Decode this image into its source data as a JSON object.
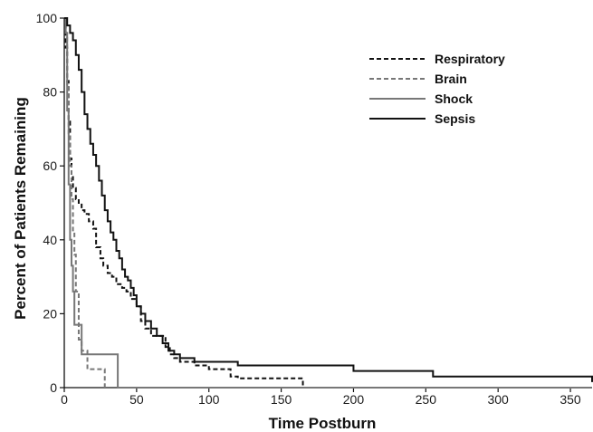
{
  "chart_data": {
    "type": "line",
    "step": true,
    "xlabel": "Time Postburn",
    "ylabel": "Percent of Patients Remaining",
    "xlim": [
      0,
      365
    ],
    "ylim": [
      0,
      100
    ],
    "xticks": [
      0,
      50,
      100,
      150,
      200,
      250,
      300,
      350
    ],
    "yticks": [
      0,
      20,
      40,
      60,
      80,
      100
    ],
    "legend_position": "top-right",
    "grid": false,
    "series": [
      {
        "name": "Respiratory",
        "color": "#111111",
        "dash": "dashed",
        "x": [
          0,
          1,
          2,
          3,
          4,
          5,
          6,
          8,
          10,
          12,
          14,
          17,
          20,
          22,
          25,
          27,
          30,
          33,
          36,
          40,
          43,
          46,
          50,
          53,
          56,
          60,
          63,
          66,
          70,
          73,
          76,
          80,
          85,
          90,
          100,
          115,
          120,
          165
        ],
        "y": [
          100,
          92,
          83,
          72,
          62,
          57,
          54,
          51,
          50,
          48,
          47,
          45,
          43,
          38,
          35,
          33,
          31,
          30,
          28,
          27,
          26,
          24,
          22,
          18,
          16,
          14,
          14,
          14,
          11,
          9,
          8,
          7,
          7,
          6,
          5,
          3,
          2.5,
          0
        ]
      },
      {
        "name": "Brain",
        "color": "#777777",
        "dash": "dashed",
        "x": [
          0,
          1,
          2,
          3,
          4,
          5,
          6,
          7,
          8,
          10,
          12,
          16,
          20,
          28
        ],
        "y": [
          100,
          96,
          82,
          68,
          60,
          51,
          42,
          36,
          26,
          13,
          10,
          5,
          5,
          0
        ]
      },
      {
        "name": "Shock",
        "color": "#777777",
        "dash": "solid",
        "x": [
          0,
          1,
          2,
          3,
          4,
          5,
          6,
          7,
          9,
          12,
          20,
          37,
          365
        ],
        "y": [
          100,
          96,
          75,
          55,
          40,
          33,
          26,
          17,
          17,
          9,
          9,
          0,
          0
        ]
      },
      {
        "name": "Sepsis",
        "color": "#111111",
        "dash": "solid",
        "x": [
          0,
          2,
          4,
          6,
          8,
          10,
          12,
          14,
          16,
          18,
          20,
          22,
          24,
          26,
          28,
          30,
          32,
          34,
          36,
          38,
          40,
          42,
          44,
          46,
          48,
          50,
          53,
          56,
          60,
          64,
          68,
          72,
          76,
          80,
          90,
          120,
          200,
          255,
          365
        ],
        "y": [
          100,
          98,
          96,
          94,
          90,
          86,
          80,
          74,
          70,
          66,
          63,
          60,
          56,
          52,
          48,
          45,
          42,
          40,
          37,
          35,
          32,
          30,
          29,
          27,
          25,
          22,
          20,
          18,
          16,
          14,
          12,
          10,
          9,
          8,
          7,
          6,
          4.5,
          3,
          1.5
        ]
      }
    ]
  }
}
